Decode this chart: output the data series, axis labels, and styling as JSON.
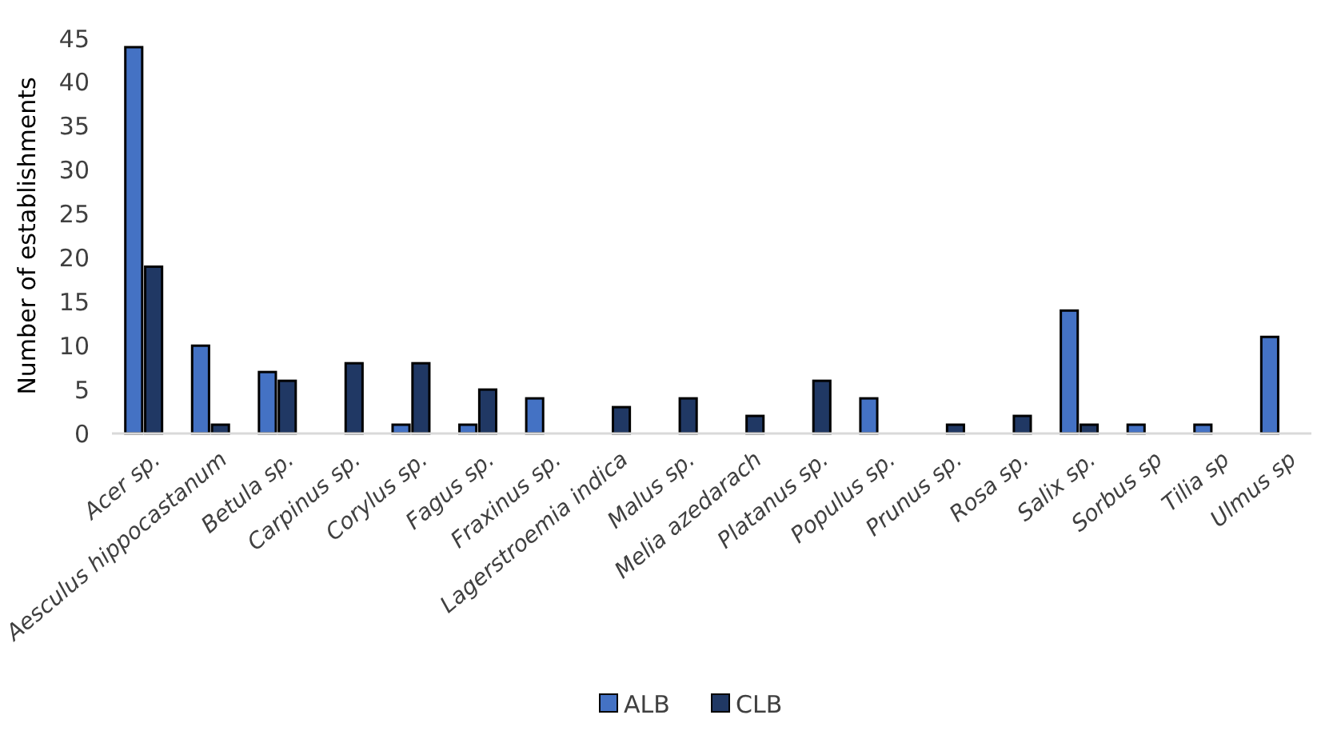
{
  "chart_data": {
    "type": "bar",
    "ylabel": "Number of establishments",
    "categories": [
      "Acer sp.",
      "Aesculus hippocastanum",
      "Betula sp.",
      "Carpinus sp.",
      "Corylus sp.",
      "Fagus sp.",
      "Fraxinus sp.",
      "Lagerstroemia indica",
      "Malus sp.",
      "Melia azedarach",
      "Platanus sp.",
      "Populus sp.",
      "Prunus sp.",
      "Rosa sp.",
      "Salix sp.",
      "Sorbus sp",
      "Tilia sp",
      "Ulmus sp"
    ],
    "series": [
      {
        "name": "ALB",
        "color": "#4472c4",
        "values": [
          44,
          10,
          7,
          0,
          1,
          1,
          4,
          0,
          0,
          0,
          0,
          4,
          0,
          0,
          14,
          1,
          1,
          11
        ]
      },
      {
        "name": "CLB",
        "color": "#203864",
        "values": [
          19,
          1,
          6,
          8,
          8,
          5,
          0,
          3,
          4,
          2,
          6,
          0,
          1,
          2,
          1,
          0,
          0,
          0
        ]
      }
    ],
    "ylim": [
      0,
      45
    ],
    "yticks": [
      0,
      5,
      10,
      15,
      20,
      25,
      30,
      35,
      40,
      45
    ],
    "grid": false,
    "legend": "bottom"
  }
}
